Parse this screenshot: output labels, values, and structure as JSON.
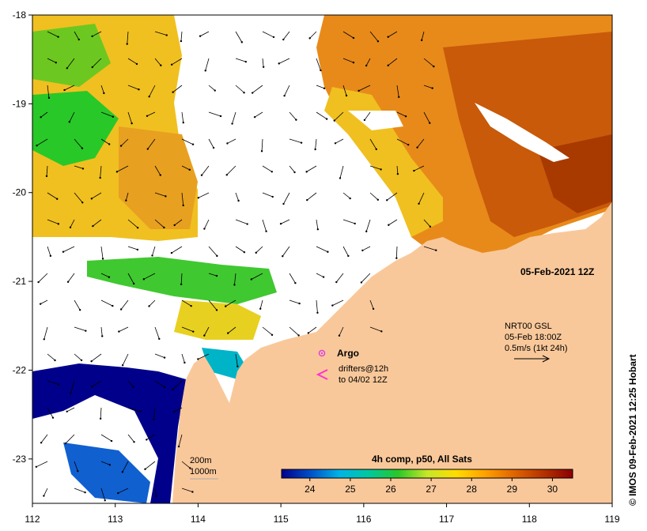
{
  "map": {
    "date_label": "05-Feb-2021 12Z",
    "credit": "© IMOS 09-Feb-2021 12:25 Hobart",
    "x_ticks": [
      "112",
      "113",
      "114",
      "115",
      "116",
      "117",
      "118",
      "119"
    ],
    "y_ticks": [
      "-18",
      "-19",
      "-20",
      "-21",
      "-22",
      "-23"
    ],
    "x_range": [
      112,
      119
    ],
    "y_range": [
      -23.5,
      -18
    ],
    "current_info": {
      "line1": "NRT00 GSL",
      "line2": "05-Feb 18:00Z",
      "line3": "0.5m/s (1kt 24h)"
    },
    "argo_label": "Argo",
    "drifters_line1": "drifters@12h",
    "drifters_line2": "to 04/02 12Z",
    "isobath_200": "200m",
    "isobath_1000": "1000m",
    "colors": {
      "land": "#f9c89a",
      "no_data": "#ffffff",
      "argo": "#e040e0",
      "drifter": "#ff33cc"
    }
  },
  "legend": {
    "title": "4h comp, p50, All Sats",
    "ticks": [
      "24",
      "25",
      "26",
      "27",
      "28",
      "29",
      "30"
    ],
    "range": [
      23.3,
      30.5
    ],
    "colors": [
      "#00008b",
      "#0050c8",
      "#00b4e6",
      "#00c8a0",
      "#28c828",
      "#c8e628",
      "#ffdc00",
      "#ffa000",
      "#e06400",
      "#b43200",
      "#8c0000"
    ]
  }
}
